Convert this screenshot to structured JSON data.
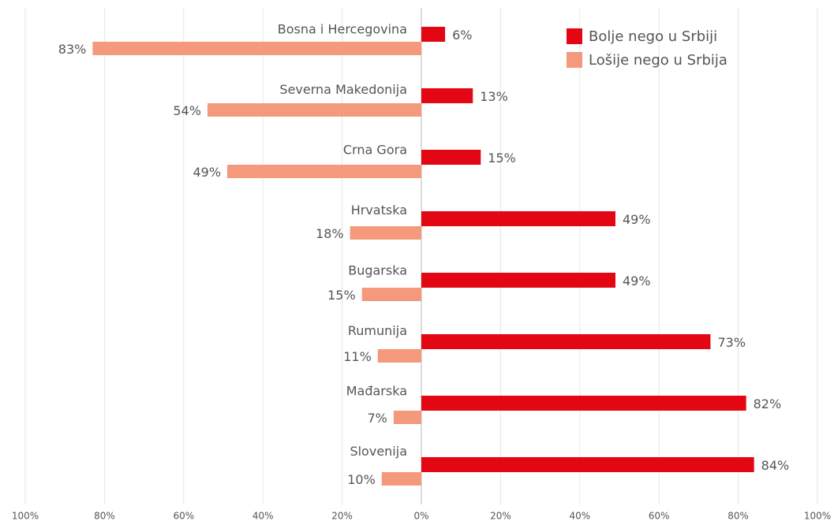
{
  "chart_data": {
    "type": "diverging-bar",
    "categories": [
      "Bosna i Hercegovina",
      "Severna Makedonija",
      "Crna Gora",
      "Hrvatska",
      "Bugarska",
      "Rumunija",
      "Mađarska",
      "Slovenija"
    ],
    "series": [
      {
        "name": "Bolje nego u Srbiji",
        "color": "#e30613",
        "values": [
          6,
          13,
          15,
          49,
          49,
          73,
          82,
          84
        ],
        "value_labels": [
          "6%",
          "13%",
          "15%",
          "49%",
          "49%",
          "73%",
          "82%",
          "84%"
        ]
      },
      {
        "name": "Lošije nego u Srbija",
        "color": "#f4997b",
        "values": [
          -83,
          -54,
          -49,
          -18,
          -15,
          -11,
          -7,
          -10
        ],
        "value_labels": [
          "83%",
          "54%",
          "49%",
          "18%",
          "15%",
          "11%",
          "7%",
          "10%"
        ]
      }
    ],
    "xlim": [
      -100,
      100
    ],
    "xticks": [
      {
        "value": -100,
        "label": "100%"
      },
      {
        "value": -80,
        "label": "80%"
      },
      {
        "value": -60,
        "label": "60%"
      },
      {
        "value": -40,
        "label": "40%"
      },
      {
        "value": -20,
        "label": "20%"
      },
      {
        "value": 0,
        "label": "0%"
      },
      {
        "value": 20,
        "label": "20%"
      },
      {
        "value": 40,
        "label": "40%"
      },
      {
        "value": 60,
        "label": "60%"
      },
      {
        "value": 80,
        "label": "80%"
      },
      {
        "value": 100,
        "label": "100%"
      }
    ],
    "grid": true,
    "legend": "top-right"
  }
}
